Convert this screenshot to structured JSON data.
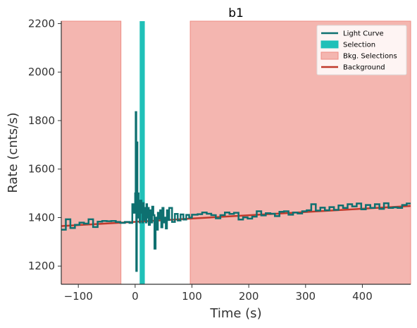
{
  "chart_data": {
    "type": "line",
    "title": "b1",
    "xlabel": "Time (s)",
    "ylabel": "Rate (cnts/s)",
    "xlim": [
      -130,
      485
    ],
    "ylim": [
      1125,
      2210
    ],
    "xticks": [
      -100,
      0,
      100,
      200,
      300,
      400
    ],
    "yticks": [
      1200,
      1400,
      1600,
      1800,
      2000,
      2200
    ],
    "legend_position": "top-right",
    "colors": {
      "light_curve": "#0e7070",
      "selection": "#20c0b8",
      "bkg_selection_fill": "#f4b6b0",
      "bkg_selection_edge": "#ee8c84",
      "background": "#c0392b"
    },
    "legend": [
      {
        "label": "Light Curve",
        "kind": "line",
        "color": "#0e7070"
      },
      {
        "label": "Selection",
        "kind": "patch",
        "color": "#20c0b8"
      },
      {
        "label": "Bkg. Selections",
        "kind": "patch",
        "color": "#f4b6b0"
      },
      {
        "label": "Background",
        "kind": "line",
        "color": "#c0392b"
      }
    ],
    "selection": [
      8,
      17
    ],
    "bkg_selections": [
      [
        -130,
        -25
      ],
      [
        97,
        485
      ]
    ],
    "background": {
      "x": [
        -130,
        485
      ],
      "y": [
        1365,
        1448
      ]
    },
    "light_curve": {
      "x": [
        -130,
        -122,
        -114,
        -106,
        -98,
        -90,
        -82,
        -74,
        -66,
        -58,
        -50,
        -42,
        -34,
        -26,
        -18,
        -10,
        -5,
        -2,
        0,
        1,
        2,
        3,
        4,
        5,
        6,
        7,
        8,
        9,
        10,
        11,
        12,
        13,
        14,
        15,
        16,
        17,
        18,
        19,
        20,
        21,
        22,
        24,
        26,
        28,
        30,
        32,
        34,
        36,
        38,
        40,
        42,
        44,
        46,
        48,
        50,
        52,
        54,
        56,
        58,
        60,
        65,
        70,
        75,
        80,
        85,
        90,
        95,
        100,
        110,
        118,
        126,
        134,
        142,
        150,
        158,
        166,
        174,
        182,
        190,
        198,
        206,
        214,
        222,
        230,
        238,
        246,
        254,
        262,
        270,
        278,
        286,
        294,
        302,
        310,
        318,
        326,
        334,
        342,
        350,
        358,
        366,
        374,
        382,
        390,
        398,
        406,
        414,
        422,
        430,
        438,
        446,
        454,
        462,
        470,
        478
      ],
      "y": [
        1350,
        1393,
        1357,
        1370,
        1379,
        1375,
        1393,
        1361,
        1383,
        1386,
        1385,
        1386,
        1382,
        1378,
        1382,
        1378,
        1455,
        1420,
        1500,
        1835,
        1180,
        1710,
        1455,
        1500,
        1400,
        1470,
        1380,
        1445,
        1470,
        1420,
        1440,
        1380,
        1460,
        1390,
        1420,
        1400,
        1440,
        1380,
        1455,
        1400,
        1440,
        1370,
        1430,
        1380,
        1445,
        1410,
        1272,
        1400,
        1350,
        1420,
        1395,
        1430,
        1360,
        1440,
        1380,
        1400,
        1355,
        1430,
        1390,
        1440,
        1382,
        1415,
        1388,
        1413,
        1392,
        1411,
        1400,
        1412,
        1414,
        1421,
        1416,
        1410,
        1397,
        1410,
        1421,
        1415,
        1420,
        1392,
        1401,
        1396,
        1404,
        1426,
        1409,
        1418,
        1416,
        1406,
        1424,
        1426,
        1412,
        1421,
        1417,
        1426,
        1430,
        1455,
        1429,
        1441,
        1430,
        1443,
        1432,
        1450,
        1440,
        1455,
        1446,
        1458,
        1434,
        1452,
        1440,
        1455,
        1436,
        1459,
        1440,
        1442,
        1440,
        1452,
        1458
      ]
    }
  }
}
